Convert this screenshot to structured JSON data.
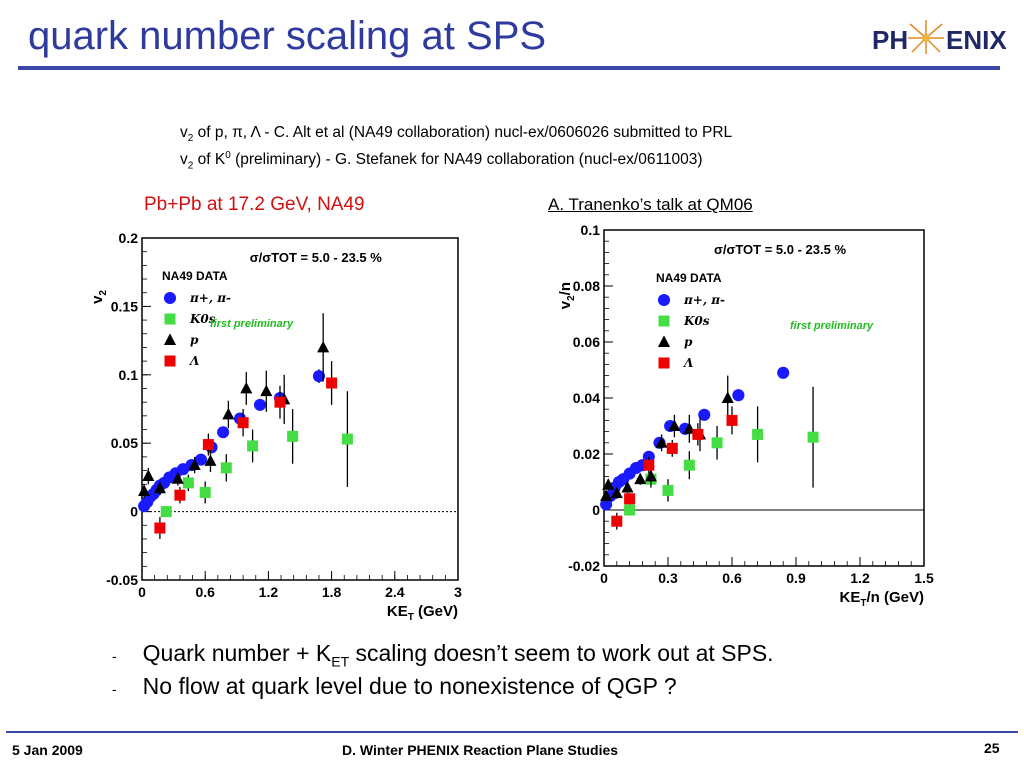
{
  "slide": {
    "title": "quark number scaling at SPS",
    "logo_text": {
      "left": "PH",
      "right": "ENIX"
    },
    "references": [
      {
        "sym": "v",
        "sub": "2",
        "text": " of p, π, Λ -  C. Alt et al (NA49 collaboration) nucl-ex/0606026 submitted to PRL"
      },
      {
        "sym": "v",
        "sub": "2",
        "mid": " of K",
        "sup": "0",
        "text": "  (preliminary) - G. Stefanek for NA49 collaboration (nucl-ex/0611003)"
      }
    ],
    "left_caption": "Pb+Pb at 17.2 GeV, NA49",
    "right_caption": "A. Tranenko’s talk at QM06",
    "bullets": [
      {
        "marker": "-",
        "pre": "Quark number + K",
        "sub": "ET",
        "post": " scaling doesn’t seem to work out at SPS."
      },
      {
        "marker": "-",
        "pre": "No flow at quark level due to nonexistence of QGP ?",
        "sub": "",
        "post": ""
      }
    ],
    "footer": {
      "date": "5 Jan 2009",
      "center": "D. Winter PHENIX Reaction Plane Studies",
      "page": "25"
    }
  },
  "colors": {
    "title": "#2f3a9e",
    "caption_red": "#d01010",
    "pion": "#1a1aff",
    "kaon": "#44dd44",
    "proton": "#000000",
    "lambda": "#ee0000",
    "prelim": "#22bb22"
  },
  "chart_data": [
    {
      "type": "scatter",
      "xlabel": "KE",
      "xlabel_sub": "T",
      "xlabel_unit": " (GeV)",
      "ylabel": "v",
      "ylabel_sub": "2",
      "xlim": [
        0,
        3
      ],
      "ylim": [
        -0.05,
        0.2
      ],
      "xticks": [
        "0",
        "0.6",
        "1.2",
        "1.8",
        "2.4",
        "3"
      ],
      "yticks": [
        "-0.05",
        "0",
        "0.05",
        "0.1",
        "0.15",
        "0.2"
      ],
      "centrality": "σ/σTOT = 5.0 - 23.5 %",
      "legend_title": "NA49 DATA",
      "annotation": "first preliminary",
      "legend": [
        "π+, π-",
        "K0s",
        "p",
        "Λ"
      ],
      "series": [
        {
          "name": "π+, π-",
          "marker": "circle",
          "color": "#1a1aff",
          "x": [
            0.02,
            0.05,
            0.08,
            0.11,
            0.14,
            0.17,
            0.21,
            0.26,
            0.32,
            0.39,
            0.47,
            0.56,
            0.66,
            0.77,
            0.93,
            1.12,
            1.31,
            1.68
          ],
          "y": [
            0.004,
            0.007,
            0.011,
            0.013,
            0.016,
            0.019,
            0.021,
            0.025,
            0.028,
            0.031,
            0.034,
            0.038,
            0.047,
            0.058,
            0.068,
            0.078,
            0.083,
            0.099
          ],
          "err": [
            0,
            0,
            0,
            0,
            0,
            0,
            0,
            0,
            0,
            0,
            0,
            0,
            0,
            0,
            0,
            0,
            0.003,
            0.005
          ]
        },
        {
          "name": "K0s",
          "marker": "square",
          "color": "#44dd44",
          "x": [
            0.23,
            0.44,
            0.6,
            0.8,
            1.05,
            1.43,
            1.95
          ],
          "y": [
            0.0,
            0.021,
            0.014,
            0.032,
            0.048,
            0.055,
            0.053
          ],
          "err": [
            0.004,
            0.006,
            0.008,
            0.01,
            0.012,
            0.02,
            0.035
          ]
        },
        {
          "name": "p",
          "marker": "triangle",
          "color": "#000000",
          "x": [
            0.02,
            0.06,
            0.17,
            0.34,
            0.5,
            0.65,
            0.82,
            0.99,
            1.18,
            1.35,
            1.72
          ],
          "y": [
            0.015,
            0.026,
            0.017,
            0.024,
            0.034,
            0.037,
            0.071,
            0.09,
            0.088,
            0.082,
            0.12
          ],
          "err": [
            0.005,
            0.006,
            0.005,
            0.005,
            0.006,
            0.008,
            0.01,
            0.012,
            0.015,
            0.018,
            0.025
          ]
        },
        {
          "name": "Λ",
          "marker": "square",
          "color": "#ee0000",
          "x": [
            0.17,
            0.36,
            0.63,
            0.96,
            1.31,
            1.8
          ],
          "y": [
            -0.012,
            0.012,
            0.049,
            0.065,
            0.08,
            0.094
          ],
          "err": [
            0.008,
            0.006,
            0.008,
            0.01,
            0.012,
            0.016
          ]
        }
      ]
    },
    {
      "type": "scatter",
      "xlabel": "KE",
      "xlabel_sub": "T",
      "xlabel_unit": "/n (GeV)",
      "ylabel": "v",
      "ylabel_sub": "2",
      "ylabel_unit": "/n",
      "xlim": [
        0,
        1.5
      ],
      "ylim": [
        -0.02,
        0.1
      ],
      "xticks": [
        "0",
        "0.3",
        "0.6",
        "0.9",
        "1.2",
        "1.5"
      ],
      "yticks": [
        "-0.02",
        "0",
        "0.02",
        "0.04",
        "0.06",
        "0.08",
        "0.1"
      ],
      "centrality": "σ/σTOT = 5.0 - 23.5 %",
      "legend_title": "NA49 DATA",
      "annotation": "first preliminary",
      "legend": [
        "π+, π-",
        "K0s",
        "p",
        "Λ"
      ],
      "series": [
        {
          "name": "π+, π-",
          "marker": "circle",
          "color": "#1a1aff",
          "x": [
            0.01,
            0.03,
            0.05,
            0.07,
            0.09,
            0.12,
            0.15,
            0.18,
            0.21,
            0.26,
            0.31,
            0.38,
            0.47,
            0.63,
            0.84
          ],
          "y": [
            0.002,
            0.005,
            0.008,
            0.01,
            0.011,
            0.013,
            0.015,
            0.016,
            0.019,
            0.024,
            0.03,
            0.029,
            0.034,
            0.041,
            0.049
          ],
          "err": [
            0,
            0,
            0,
            0,
            0,
            0,
            0,
            0,
            0,
            0,
            0,
            0,
            0,
            0,
            0.002
          ]
        },
        {
          "name": "K0s",
          "marker": "square",
          "color": "#44dd44",
          "x": [
            0.12,
            0.22,
            0.3,
            0.4,
            0.53,
            0.72,
            0.98
          ],
          "y": [
            0.0,
            0.011,
            0.007,
            0.016,
            0.024,
            0.027,
            0.026
          ],
          "err": [
            0.002,
            0.003,
            0.004,
            0.005,
            0.006,
            0.01,
            0.018
          ]
        },
        {
          "name": "p",
          "marker": "triangle",
          "color": "#000000",
          "x": [
            0.01,
            0.02,
            0.06,
            0.11,
            0.17,
            0.22,
            0.27,
            0.33,
            0.4,
            0.45,
            0.58
          ],
          "y": [
            0.005,
            0.009,
            0.006,
            0.008,
            0.011,
            0.012,
            0.024,
            0.03,
            0.029,
            0.027,
            0.04
          ],
          "err": [
            0.002,
            0.002,
            0.002,
            0.002,
            0.002,
            0.003,
            0.003,
            0.004,
            0.005,
            0.006,
            0.008
          ]
        },
        {
          "name": "Λ",
          "marker": "square",
          "color": "#ee0000",
          "x": [
            0.06,
            0.12,
            0.21,
            0.32,
            0.44,
            0.6
          ],
          "y": [
            -0.004,
            0.004,
            0.016,
            0.022,
            0.027,
            0.032
          ],
          "err": [
            0.003,
            0.002,
            0.003,
            0.003,
            0.004,
            0.005
          ]
        }
      ]
    }
  ]
}
